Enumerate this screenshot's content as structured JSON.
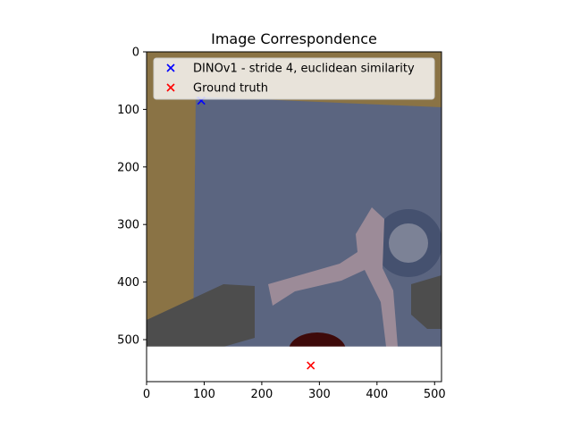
{
  "chart_data": {
    "type": "scatter",
    "title": "Image Correspondence",
    "xlabel": "",
    "ylabel": "",
    "xlim": [
      0,
      512
    ],
    "ylim": [
      573,
      0
    ],
    "image_extent": [
      0,
      512,
      512,
      0
    ],
    "xticks": [
      0,
      100,
      200,
      300,
      400,
      500
    ],
    "yticks": [
      0,
      100,
      200,
      300,
      400,
      500
    ],
    "grid": false,
    "legend_position": "top-right",
    "series": [
      {
        "name": "DINOv1 - stride 4, euclidean similarity",
        "marker": "x",
        "color": "#0000ff",
        "points": [
          [
            95,
            85
          ]
        ]
      },
      {
        "name": "Ground truth",
        "marker": "x",
        "color": "#ff0000",
        "points": [
          [
            285,
            545
          ]
        ]
      }
    ],
    "image_colors": {
      "board": "#8a7345",
      "panel": "#5b6580",
      "gear": "#45516f",
      "bent_shape": "#9c8b98",
      "dark_block": "#4d4d4d",
      "blob": "#3e0a0a"
    }
  }
}
